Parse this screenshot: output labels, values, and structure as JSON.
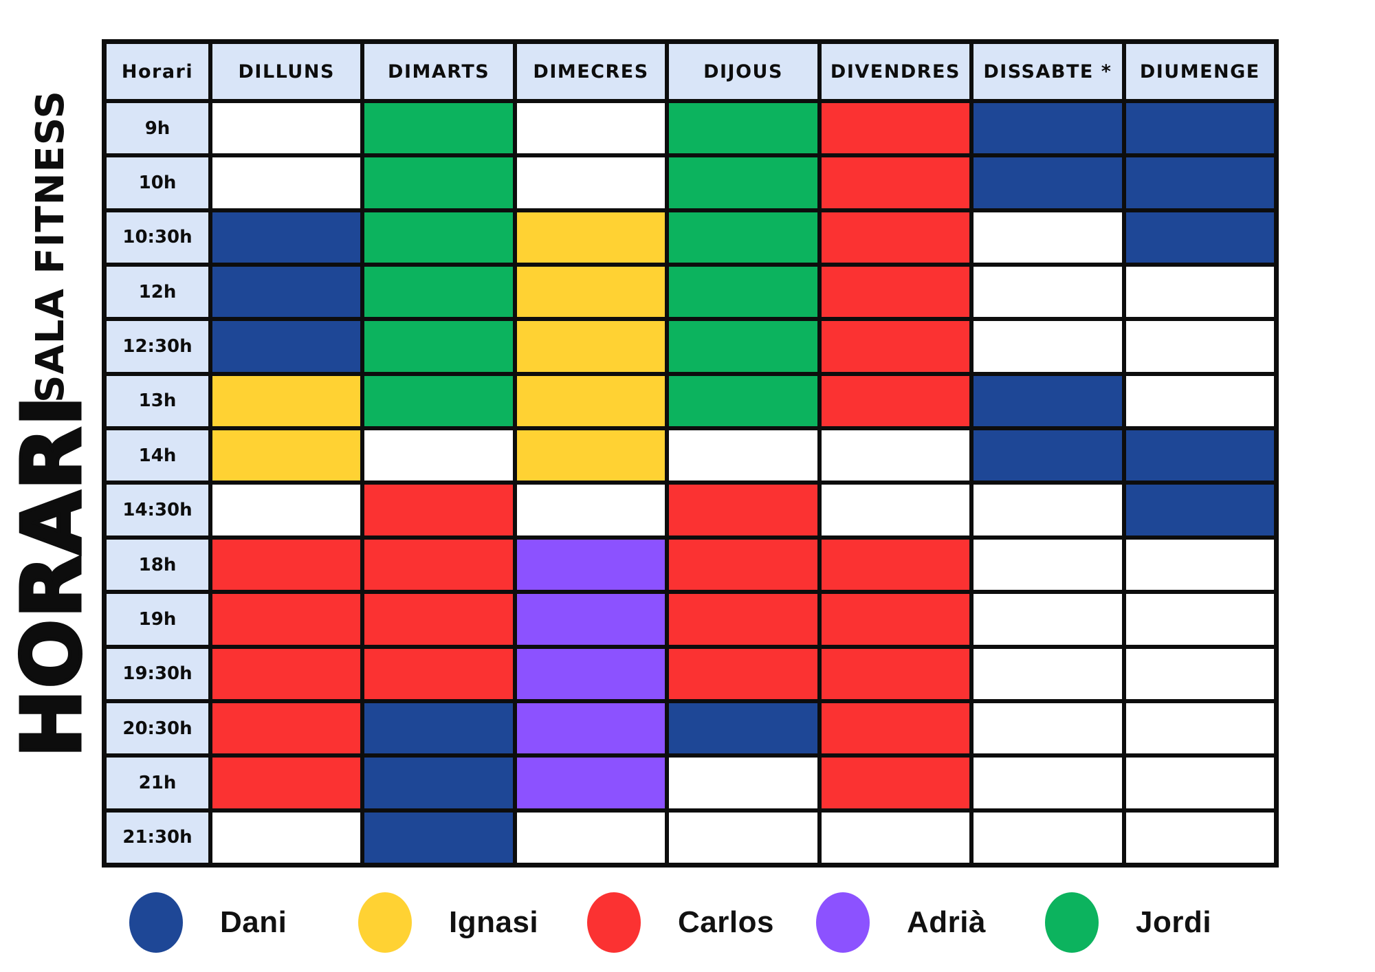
{
  "titles": {
    "vertical_main": "HORARI",
    "vertical_sub": "SALA FITNESS"
  },
  "table": {
    "time_header": "Horari",
    "day_headers": [
      "DILLUNS",
      "DIMARTS",
      "DIMECRES",
      "DIJOUS",
      "DIVENDRES",
      "DISSABTE *",
      "DIUMENGE"
    ],
    "header_bg": "#d9e5f8",
    "grid_line_color": "#0d0d0d",
    "empty_cell_color": "#ffffff",
    "rows": [
      {
        "time": "9h",
        "cells": [
          "",
          "jordi",
          "",
          "jordi",
          "carlos",
          "dani",
          "dani"
        ]
      },
      {
        "time": "10h",
        "cells": [
          "",
          "jordi",
          "",
          "jordi",
          "carlos",
          "dani",
          "dani"
        ]
      },
      {
        "time": "10:30h",
        "cells": [
          "dani",
          "jordi",
          "ignasi",
          "jordi",
          "carlos",
          "",
          "dani"
        ]
      },
      {
        "time": "12h",
        "cells": [
          "dani",
          "jordi",
          "ignasi",
          "jordi",
          "carlos",
          "",
          ""
        ]
      },
      {
        "time": "12:30h",
        "cells": [
          "dani",
          "jordi",
          "ignasi",
          "jordi",
          "carlos",
          "",
          ""
        ]
      },
      {
        "time": "13h",
        "cells": [
          "ignasi",
          "jordi",
          "ignasi",
          "jordi",
          "carlos",
          "dani",
          ""
        ]
      },
      {
        "time": "14h",
        "cells": [
          "ignasi",
          "",
          "ignasi",
          "",
          "",
          "dani",
          "dani"
        ]
      },
      {
        "time": "14:30h",
        "cells": [
          "",
          "carlos",
          "",
          "carlos",
          "",
          "",
          "dani"
        ]
      },
      {
        "time": "18h",
        "cells": [
          "carlos",
          "carlos",
          "adria",
          "carlos",
          "carlos",
          "",
          ""
        ]
      },
      {
        "time": "19h",
        "cells": [
          "carlos",
          "carlos",
          "adria",
          "carlos",
          "carlos",
          "",
          ""
        ]
      },
      {
        "time": "19:30h",
        "cells": [
          "carlos",
          "carlos",
          "adria",
          "carlos",
          "carlos",
          "",
          ""
        ]
      },
      {
        "time": "20:30h",
        "cells": [
          "carlos",
          "dani",
          "adria",
          "dani",
          "carlos",
          "",
          ""
        ]
      },
      {
        "time": "21h",
        "cells": [
          "carlos",
          "dani",
          "adria",
          "",
          "carlos",
          "",
          ""
        ]
      },
      {
        "time": "21:30h",
        "cells": [
          "",
          "dani",
          "",
          "",
          "",
          "",
          ""
        ]
      }
    ]
  },
  "people": {
    "dani": {
      "label": "Dani",
      "color": "#1e4796"
    },
    "ignasi": {
      "label": "Ignasi",
      "color": "#ffd233"
    },
    "carlos": {
      "label": "Carlos",
      "color": "#fb3232"
    },
    "adria": {
      "label": "Adrià",
      "color": "#8c52ff"
    },
    "jordi": {
      "label": "Jordi",
      "color": "#0cb35e"
    }
  },
  "legend_order": [
    "dani",
    "ignasi",
    "carlos",
    "adria",
    "jordi"
  ],
  "chart_data": {
    "type": "table",
    "title": "HORARI SALA FITNESS",
    "columns": [
      "Horari",
      "DILLUNS",
      "DIMARTS",
      "DIMECRES",
      "DIJOUS",
      "DIVENDRES",
      "DISSABTE *",
      "DIUMENGE"
    ],
    "rows": [
      [
        "9h",
        "",
        "Jordi",
        "",
        "Jordi",
        "Carlos",
        "Dani",
        "Dani"
      ],
      [
        "10h",
        "",
        "Jordi",
        "",
        "Jordi",
        "Carlos",
        "Dani",
        "Dani"
      ],
      [
        "10:30h",
        "Dani",
        "Jordi",
        "Ignasi",
        "Jordi",
        "Carlos",
        "",
        "Dani"
      ],
      [
        "12h",
        "Dani",
        "Jordi",
        "Ignasi",
        "Jordi",
        "Carlos",
        "",
        ""
      ],
      [
        "12:30h",
        "Dani",
        "Jordi",
        "Ignasi",
        "Jordi",
        "Carlos",
        "",
        ""
      ],
      [
        "13h",
        "Ignasi",
        "Jordi",
        "Ignasi",
        "Jordi",
        "Carlos",
        "Dani",
        ""
      ],
      [
        "14h",
        "Ignasi",
        "",
        "Ignasi",
        "",
        "",
        "Dani",
        "Dani"
      ],
      [
        "14:30h",
        "",
        "Carlos",
        "",
        "Carlos",
        "",
        "",
        "Dani"
      ],
      [
        "18h",
        "Carlos",
        "Carlos",
        "Adrià",
        "Carlos",
        "Carlos",
        "",
        ""
      ],
      [
        "19h",
        "Carlos",
        "Carlos",
        "Adrià",
        "Carlos",
        "Carlos",
        "",
        ""
      ],
      [
        "19:30h",
        "Carlos",
        "Carlos",
        "Adrià",
        "Carlos",
        "Carlos",
        "",
        ""
      ],
      [
        "20:30h",
        "Carlos",
        "Dani",
        "Adrià",
        "Dani",
        "Carlos",
        "",
        ""
      ],
      [
        "21h",
        "Carlos",
        "Dani",
        "Adrià",
        "",
        "Carlos",
        "",
        ""
      ],
      [
        "21:30h",
        "",
        "Dani",
        "",
        "",
        "",
        "",
        ""
      ]
    ],
    "legend": [
      {
        "label": "Dani",
        "color": "#1e4796"
      },
      {
        "label": "Ignasi",
        "color": "#ffd233"
      },
      {
        "label": "Carlos",
        "color": "#fb3232"
      },
      {
        "label": "Adrià",
        "color": "#8c52ff"
      },
      {
        "label": "Jordi",
        "color": "#0cb35e"
      }
    ]
  }
}
